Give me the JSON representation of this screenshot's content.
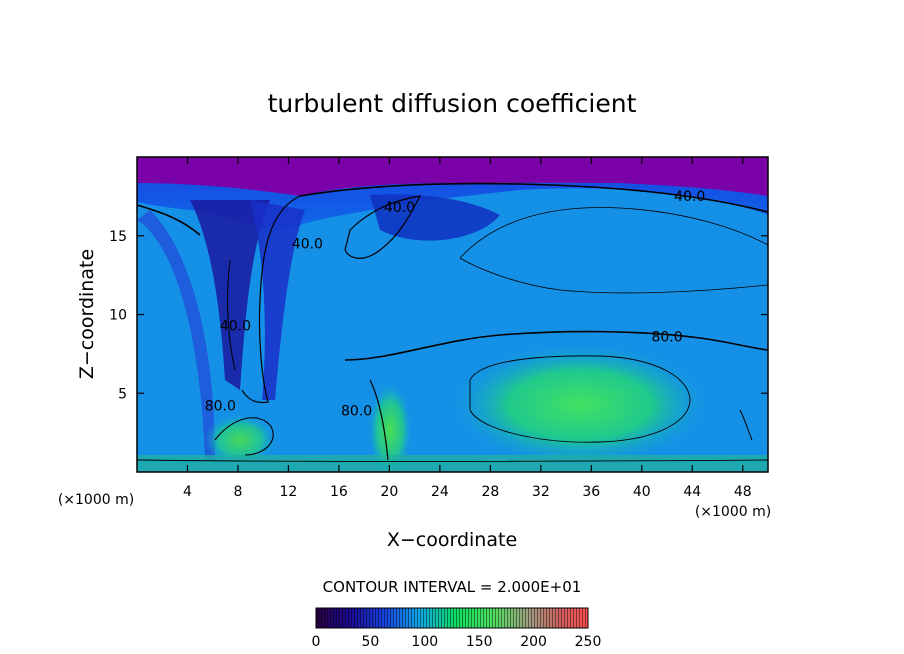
{
  "chart_data": {
    "type": "heatmap",
    "title": "turbulent diffusion coefficient",
    "xlabel": "X−coordinate",
    "ylabel": "Z−coordinate",
    "x_unit": "(×1000 m)",
    "y_unit": "(×1000 m)",
    "xlim": [
      0,
      50
    ],
    "ylim": [
      0,
      20
    ],
    "x_ticks": [
      4,
      8,
      12,
      16,
      20,
      24,
      28,
      32,
      36,
      40,
      44,
      48
    ],
    "y_ticks": [
      5,
      10,
      15
    ],
    "contour_interval_text": "CONTOUR INTERVAL = 2.000E+01",
    "colorbar": {
      "min": 0,
      "max": 250,
      "ticks": [
        0,
        50,
        100,
        150,
        200,
        250
      ]
    },
    "contour_labels": [
      {
        "text": "40.0",
        "x": 43.8,
        "z": 17.2
      },
      {
        "text": "40.0",
        "x": 20.8,
        "z": 16.5
      },
      {
        "text": "40.0",
        "x": 13.5,
        "z": 14.2
      },
      {
        "text": "40.0",
        "x": 7.8,
        "z": 9.0
      },
      {
        "text": "80.0",
        "x": 42.0,
        "z": 8.3
      },
      {
        "text": "80.0",
        "x": 17.4,
        "z": 3.6
      },
      {
        "text": "80.0",
        "x": 6.6,
        "z": 3.9
      }
    ],
    "field_features": [
      {
        "kind": "low",
        "x": 25,
        "z": 19.2,
        "value": 10
      },
      {
        "kind": "high",
        "x": 34.5,
        "z": 4.2,
        "value": 140
      },
      {
        "kind": "high",
        "x": 19.5,
        "z": 2.0,
        "value": 130
      },
      {
        "kind": "high",
        "x": 8.0,
        "z": 2.5,
        "value": 120
      }
    ]
  }
}
